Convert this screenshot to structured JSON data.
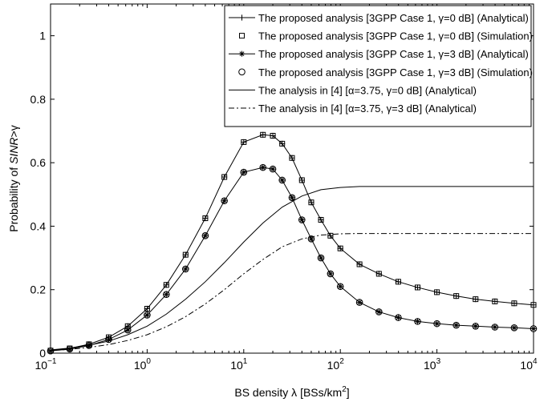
{
  "chart_data": {
    "type": "line",
    "x_scale": "log",
    "xlim": [
      0.1,
      10000
    ],
    "ylim": [
      0,
      1.1
    ],
    "xlabel_parts": [
      "BS density λ  [BSs/km",
      "2",
      "]"
    ],
    "ylabel_parts": [
      "Probability of ",
      "SINR",
      ">γ"
    ],
    "x_ticks": [
      {
        "base": "10",
        "exp": "−1",
        "value": 0.1
      },
      {
        "base": "10",
        "exp": "0",
        "value": 1
      },
      {
        "base": "10",
        "exp": "1",
        "value": 10
      },
      {
        "base": "10",
        "exp": "2",
        "value": 100
      },
      {
        "base": "10",
        "exp": "3",
        "value": 1000
      },
      {
        "base": "10",
        "exp": "4",
        "value": 10000
      }
    ],
    "y_ticks": [
      {
        "label": "0",
        "value": 0
      },
      {
        "label": "0.2",
        "value": 0.2
      },
      {
        "label": "0.4",
        "value": 0.4
      },
      {
        "label": "0.6",
        "value": 0.6
      },
      {
        "label": "0.8",
        "value": 0.8
      },
      {
        "label": "1",
        "value": 1
      }
    ],
    "grid": false,
    "legend_position": "top-right",
    "series": [
      {
        "name": "The proposed analysis [3GPP Case 1, γ=0 dB] (Analytical)",
        "style": "line",
        "dash": "solid",
        "marker": "plus",
        "x": [
          0.1,
          0.158,
          0.25,
          0.4,
          0.63,
          1,
          1.58,
          2.5,
          4,
          6.3,
          10,
          15.8,
          20,
          25,
          31.6,
          40,
          50,
          63,
          79,
          100,
          158,
          251,
          398,
          631,
          1000,
          1585,
          2512,
          3981,
          6310,
          10000
        ],
        "values": [
          0.008,
          0.015,
          0.028,
          0.05,
          0.085,
          0.14,
          0.215,
          0.31,
          0.425,
          0.555,
          0.665,
          0.688,
          0.685,
          0.66,
          0.615,
          0.545,
          0.475,
          0.42,
          0.37,
          0.33,
          0.28,
          0.25,
          0.225,
          0.207,
          0.192,
          0.18,
          0.17,
          0.163,
          0.157,
          0.152
        ]
      },
      {
        "name": "The proposed analysis [3GPP Case 1, γ=0 dB] (Simulation)",
        "style": "markers",
        "marker": "square",
        "x": [
          0.1,
          0.158,
          0.25,
          0.4,
          0.63,
          1,
          1.58,
          2.5,
          4,
          6.3,
          10,
          15.8,
          20,
          25,
          31.6,
          40,
          50,
          63,
          79,
          100,
          158,
          251,
          398,
          631,
          1000,
          1585,
          2512,
          3981,
          6310,
          10000
        ],
        "values": [
          0.008,
          0.015,
          0.028,
          0.05,
          0.085,
          0.14,
          0.215,
          0.31,
          0.425,
          0.555,
          0.665,
          0.688,
          0.685,
          0.66,
          0.615,
          0.545,
          0.475,
          0.42,
          0.37,
          0.33,
          0.28,
          0.25,
          0.225,
          0.207,
          0.192,
          0.18,
          0.17,
          0.163,
          0.157,
          0.152
        ]
      },
      {
        "name": "The proposed analysis [3GPP Case 1, γ=3 dB] (Analytical)",
        "style": "line",
        "dash": "solid",
        "marker": "asterisk",
        "x": [
          0.1,
          0.158,
          0.25,
          0.4,
          0.63,
          1,
          1.58,
          2.5,
          4,
          6.3,
          10,
          15.8,
          20,
          25,
          31.6,
          40,
          50,
          63,
          79,
          100,
          158,
          251,
          398,
          631,
          1000,
          1585,
          2512,
          3981,
          6310,
          10000
        ],
        "values": [
          0.007,
          0.013,
          0.024,
          0.043,
          0.073,
          0.12,
          0.185,
          0.265,
          0.37,
          0.48,
          0.57,
          0.585,
          0.58,
          0.545,
          0.49,
          0.42,
          0.36,
          0.3,
          0.25,
          0.21,
          0.16,
          0.13,
          0.112,
          0.1,
          0.093,
          0.088,
          0.085,
          0.082,
          0.08,
          0.077
        ]
      },
      {
        "name": "The proposed analysis [3GPP Case 1, γ=3 dB] (Simulation)",
        "style": "markers",
        "marker": "circle",
        "x": [
          0.1,
          0.158,
          0.25,
          0.4,
          0.63,
          1,
          1.58,
          2.5,
          4,
          6.3,
          10,
          15.8,
          20,
          25,
          31.6,
          40,
          50,
          63,
          79,
          100,
          158,
          251,
          398,
          631,
          1000,
          1585,
          2512,
          3981,
          6310,
          10000
        ],
        "values": [
          0.007,
          0.013,
          0.024,
          0.043,
          0.073,
          0.12,
          0.185,
          0.265,
          0.37,
          0.48,
          0.57,
          0.585,
          0.58,
          0.545,
          0.49,
          0.42,
          0.36,
          0.3,
          0.25,
          0.21,
          0.16,
          0.13,
          0.112,
          0.1,
          0.093,
          0.088,
          0.085,
          0.082,
          0.08,
          0.077
        ]
      },
      {
        "name": "The analysis in [4] [α=3.75, γ=0 dB] (Analytical)",
        "style": "line",
        "dash": "solid",
        "marker": "none",
        "x": [
          0.1,
          0.158,
          0.25,
          0.4,
          0.63,
          1,
          1.58,
          2.5,
          4,
          6.3,
          10,
          15.8,
          25,
          40,
          63,
          100,
          158,
          251,
          1000,
          10000
        ],
        "values": [
          0.01,
          0.016,
          0.025,
          0.038,
          0.058,
          0.085,
          0.123,
          0.17,
          0.225,
          0.285,
          0.35,
          0.41,
          0.46,
          0.495,
          0.515,
          0.522,
          0.525,
          0.525,
          0.525,
          0.525
        ]
      },
      {
        "name": "The analysis in [4] [α=3.75, γ=3 dB] (Analytical)",
        "style": "line",
        "dash": "dashdot",
        "marker": "none",
        "x": [
          0.1,
          0.158,
          0.25,
          0.4,
          0.63,
          1,
          1.58,
          2.5,
          4,
          6.3,
          10,
          15.8,
          25,
          40,
          63,
          100,
          158,
          251,
          1000,
          10000
        ],
        "values": [
          0.008,
          0.012,
          0.018,
          0.027,
          0.04,
          0.058,
          0.083,
          0.115,
          0.155,
          0.2,
          0.25,
          0.295,
          0.335,
          0.36,
          0.372,
          0.376,
          0.377,
          0.377,
          0.377,
          0.377
        ]
      }
    ]
  }
}
